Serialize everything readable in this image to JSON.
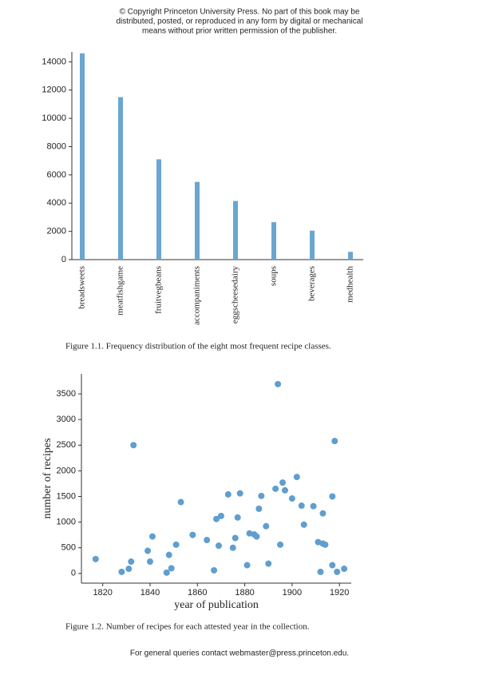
{
  "header": {
    "lines": [
      "© Copyright Princeton University Press. No part of this book may be",
      "distributed, posted, or reproduced in any form by digital or mechanical",
      "means without prior written permission of the publisher."
    ]
  },
  "chart_data": [
    {
      "type": "bar",
      "caption": "Figure 1.1. Frequency distribution of the eight most frequent recipe classes.",
      "categories": [
        "breadsweets",
        "meatfishgame",
        "fruitvegbeans",
        "accompaniments",
        "eggscheesedairy",
        "soups",
        "beverages",
        "medhealth"
      ],
      "values": [
        14600,
        11500,
        7100,
        5500,
        4150,
        2650,
        2050,
        550
      ],
      "color": "#6aa6d0",
      "ylim": [
        0,
        14700
      ],
      "yticks": [
        0,
        2000,
        4000,
        6000,
        8000,
        10000,
        12000,
        14000
      ],
      "grid": false
    },
    {
      "type": "scatter",
      "caption": "Figure 1.2. Number of recipes for each attested year in the collection.",
      "x_label": "year of publication",
      "y_label": "number of recipes",
      "x": [
        1817,
        1828,
        1831,
        1832,
        1833,
        1839,
        1840,
        1841,
        1847,
        1848,
        1849,
        1851,
        1853,
        1858,
        1864,
        1867,
        1868,
        1869,
        1870,
        1873,
        1875,
        1876,
        1877,
        1878,
        1881,
        1882,
        1884,
        1885,
        1886,
        1887,
        1889,
        1890,
        1893,
        1894,
        1895,
        1896,
        1897,
        1900,
        1902,
        1904,
        1905,
        1909,
        1911,
        1912,
        1913,
        1913,
        1914,
        1917,
        1917,
        1918,
        1919,
        1922
      ],
      "values": [
        280,
        30,
        90,
        230,
        2500,
        440,
        230,
        720,
        15,
        360,
        100,
        560,
        1390,
        750,
        650,
        60,
        1060,
        540,
        1120,
        1540,
        500,
        690,
        1090,
        1560,
        160,
        780,
        760,
        720,
        1260,
        1510,
        920,
        190,
        1650,
        3690,
        560,
        1770,
        1620,
        1460,
        1880,
        1320,
        950,
        1310,
        610,
        30,
        580,
        1170,
        560,
        160,
        1500,
        2580,
        30,
        90
      ],
      "color": "#5f9ecf",
      "xlim": [
        1811,
        1925
      ],
      "ylim": [
        -190,
        3890
      ],
      "xticks": [
        1820,
        1840,
        1860,
        1880,
        1900,
        1920
      ],
      "yticks": [
        0,
        500,
        1000,
        1500,
        2000,
        2500,
        3000,
        3500
      ],
      "grid": false
    }
  ],
  "footer": "For general queries contact webmaster@press.princeton.edu."
}
